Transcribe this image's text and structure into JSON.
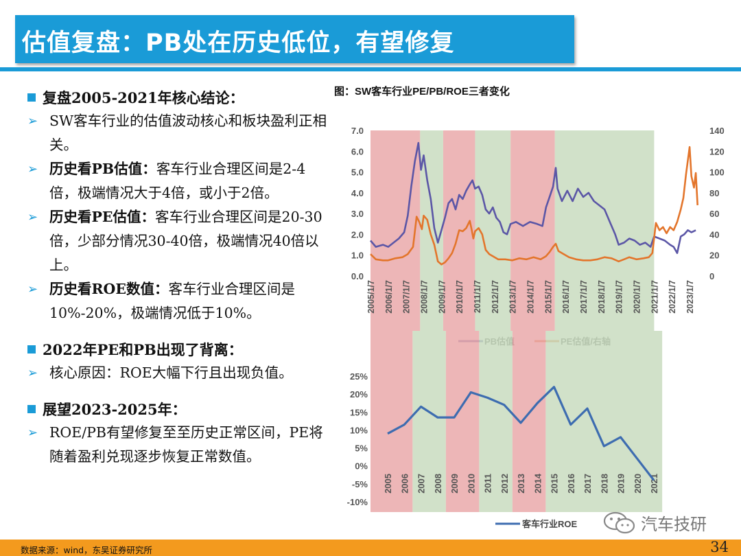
{
  "title": "估值复盘：PB处在历史低位，有望修复",
  "sections": [
    {
      "heading": "复盘2005-2021年核心结论：",
      "bullets": [
        {
          "bold": "",
          "text": "SW客车行业的估值波动核心和板块盈利正相关。"
        },
        {
          "bold": "历史看PB估值：",
          "text": "客车行业合理区间是2-4倍，极端情况大于4倍，或小于2倍。"
        },
        {
          "bold": "历史看PE估值：",
          "text": "客车行业合理区间是20-30倍，少部分情况30-40倍，极端情况40倍以上。"
        },
        {
          "bold": "历史看ROE数值：",
          "text": "客车行业合理区间是10%-20%，极端情况低于10%。"
        }
      ]
    },
    {
      "heading": "2022年PE和PB出现了背离：",
      "bullets": [
        {
          "bold": "",
          "text": "核心原因：ROE大幅下行且出现负值。"
        }
      ]
    },
    {
      "heading": "展望2023-2025年：",
      "bullets": [
        {
          "bold": "",
          "text": "ROE/PB有望修复至至历史正常区间，PE将随着盈利兑现逐步恢复正常数值。"
        }
      ]
    }
  ],
  "source": "数据来源：wind，东吴证券研究所",
  "page_number": "34",
  "watermark": "汽车技研",
  "colors": {
    "accent": "#1a9bd7",
    "pb": "#5b56a6",
    "pe": "#e3752b",
    "roe": "#3d6cb0",
    "shade_red": "#eaa9aa",
    "shade_green": "#c9dcc0",
    "footer": "#f39a1e"
  },
  "chart_data": [
    {
      "type": "line",
      "title": "图：SW客车行业PE/PB/ROE三者变化",
      "x_labels": [
        "2005/1/7",
        "2006/1/7",
        "2007/1/7",
        "2008/1/7",
        "2009/1/7",
        "2010/1/7",
        "2011/1/7",
        "2012/1/7",
        "2013/1/7",
        "2014/1/7",
        "2015/1/7",
        "2016/1/7",
        "2017/1/7",
        "2018/1/7",
        "2019/1/7",
        "2020/1/7",
        "2021/1/7",
        "2022/1/7",
        "2023/1/7"
      ],
      "x_range": [
        2005.0,
        2023.5
      ],
      "y_left": {
        "ticks": [
          "0.0",
          "1.0",
          "2.0",
          "3.0",
          "4.0",
          "5.0",
          "6.0",
          "7.0"
        ],
        "range": [
          0,
          7
        ]
      },
      "y_right": {
        "ticks": [
          "0",
          "20",
          "40",
          "60",
          "80",
          "100",
          "120",
          "140"
        ],
        "range": [
          0,
          140
        ]
      },
      "shaded_periods": [
        {
          "from": 2005.0,
          "to": 2007.8,
          "color": "red"
        },
        {
          "from": 2007.8,
          "to": 2009.1,
          "color": "green"
        },
        {
          "from": 2009.1,
          "to": 2010.9,
          "color": "red"
        },
        {
          "from": 2010.9,
          "to": 2012.9,
          "color": "green"
        },
        {
          "from": 2012.9,
          "to": 2015.4,
          "color": "red"
        },
        {
          "from": 2015.4,
          "to": 2021.0,
          "color": "green"
        }
      ],
      "series": [
        {
          "name": "PB估值",
          "axis": "left",
          "points": [
            [
              2005.0,
              1.7
            ],
            [
              2005.3,
              1.4
            ],
            [
              2005.7,
              1.5
            ],
            [
              2006.0,
              1.4
            ],
            [
              2006.3,
              1.6
            ],
            [
              2006.6,
              1.8
            ],
            [
              2006.9,
              2.1
            ],
            [
              2007.1,
              2.9
            ],
            [
              2007.3,
              4.3
            ],
            [
              2007.5,
              5.5
            ],
            [
              2007.7,
              6.4
            ],
            [
              2007.85,
              5.1
            ],
            [
              2008.0,
              5.8
            ],
            [
              2008.2,
              4.6
            ],
            [
              2008.4,
              3.7
            ],
            [
              2008.6,
              2.3
            ],
            [
              2008.8,
              1.6
            ],
            [
              2009.0,
              2.2
            ],
            [
              2009.2,
              2.8
            ],
            [
              2009.4,
              3.5
            ],
            [
              2009.6,
              3.7
            ],
            [
              2009.8,
              3.2
            ],
            [
              2010.0,
              3.9
            ],
            [
              2010.2,
              3.7
            ],
            [
              2010.4,
              4.1
            ],
            [
              2010.6,
              4.4
            ],
            [
              2010.75,
              4.6
            ],
            [
              2010.9,
              4.2
            ],
            [
              2011.1,
              4.3
            ],
            [
              2011.3,
              3.9
            ],
            [
              2011.5,
              3.2
            ],
            [
              2011.7,
              3.0
            ],
            [
              2011.9,
              3.3
            ],
            [
              2012.1,
              2.8
            ],
            [
              2012.3,
              2.6
            ],
            [
              2012.5,
              2.1
            ],
            [
              2012.7,
              2.0
            ],
            [
              2012.9,
              2.5
            ],
            [
              2013.2,
              2.6
            ],
            [
              2013.6,
              2.4
            ],
            [
              2014.0,
              2.6
            ],
            [
              2014.4,
              2.5
            ],
            [
              2014.7,
              2.4
            ],
            [
              2014.9,
              3.3
            ],
            [
              2015.1,
              3.8
            ],
            [
              2015.3,
              4.3
            ],
            [
              2015.45,
              5.2
            ],
            [
              2015.55,
              4.2
            ],
            [
              2015.8,
              3.6
            ],
            [
              2016.1,
              4.1
            ],
            [
              2016.4,
              3.6
            ],
            [
              2016.7,
              4.2
            ],
            [
              2017.0,
              3.8
            ],
            [
              2017.3,
              4.0
            ],
            [
              2017.6,
              3.6
            ],
            [
              2017.9,
              3.4
            ],
            [
              2018.2,
              3.2
            ],
            [
              2018.5,
              2.6
            ],
            [
              2018.8,
              2.0
            ],
            [
              2019.0,
              1.5
            ],
            [
              2019.3,
              1.6
            ],
            [
              2019.6,
              1.8
            ],
            [
              2019.9,
              1.7
            ],
            [
              2020.2,
              1.5
            ],
            [
              2020.5,
              1.6
            ],
            [
              2020.8,
              1.4
            ],
            [
              2021.0,
              1.9
            ],
            [
              2021.3,
              1.8
            ],
            [
              2021.6,
              1.7
            ],
            [
              2021.9,
              1.5
            ],
            [
              2022.1,
              1.4
            ],
            [
              2022.3,
              1.1
            ],
            [
              2022.5,
              1.9
            ],
            [
              2022.7,
              2.0
            ],
            [
              2022.9,
              2.2
            ],
            [
              2023.1,
              2.1
            ],
            [
              2023.35,
              2.2
            ]
          ]
        },
        {
          "name": "PE估值/右轴",
          "axis": "right",
          "points": [
            [
              2005.0,
              21
            ],
            [
              2005.3,
              16
            ],
            [
              2005.7,
              15
            ],
            [
              2006.0,
              15
            ],
            [
              2006.4,
              17
            ],
            [
              2006.8,
              18
            ],
            [
              2007.1,
              21
            ],
            [
              2007.4,
              28
            ],
            [
              2007.6,
              57
            ],
            [
              2007.75,
              52
            ],
            [
              2007.9,
              45
            ],
            [
              2008.0,
              58
            ],
            [
              2008.2,
              54
            ],
            [
              2008.4,
              40
            ],
            [
              2008.6,
              30
            ],
            [
              2008.8,
              14
            ],
            [
              2009.0,
              11
            ],
            [
              2009.2,
              13
            ],
            [
              2009.4,
              17
            ],
            [
              2009.6,
              22
            ],
            [
              2009.8,
              31
            ],
            [
              2010.0,
              44
            ],
            [
              2010.2,
              43
            ],
            [
              2010.4,
              46
            ],
            [
              2010.6,
              53
            ],
            [
              2010.7,
              45
            ],
            [
              2010.8,
              36
            ],
            [
              2010.9,
              43
            ],
            [
              2011.1,
              46
            ],
            [
              2011.3,
              40
            ],
            [
              2011.5,
              25
            ],
            [
              2011.7,
              21
            ],
            [
              2011.9,
              19
            ],
            [
              2012.2,
              16
            ],
            [
              2012.6,
              16
            ],
            [
              2013.0,
              15
            ],
            [
              2013.4,
              17
            ],
            [
              2013.8,
              16
            ],
            [
              2014.2,
              18
            ],
            [
              2014.6,
              16
            ],
            [
              2014.9,
              19
            ],
            [
              2015.1,
              23
            ],
            [
              2015.3,
              28
            ],
            [
              2015.45,
              31
            ],
            [
              2015.6,
              24
            ],
            [
              2015.9,
              21
            ],
            [
              2016.2,
              18
            ],
            [
              2016.6,
              16
            ],
            [
              2017.0,
              15
            ],
            [
              2017.4,
              15
            ],
            [
              2017.8,
              16
            ],
            [
              2018.2,
              18
            ],
            [
              2018.6,
              17
            ],
            [
              2019.0,
              14
            ],
            [
              2019.3,
              16
            ],
            [
              2019.6,
              18
            ],
            [
              2020.0,
              16
            ],
            [
              2020.4,
              17
            ],
            [
              2020.7,
              18
            ],
            [
              2020.9,
              22
            ],
            [
              2021.1,
              51
            ],
            [
              2021.3,
              44
            ],
            [
              2021.5,
              47
            ],
            [
              2021.7,
              41
            ],
            [
              2021.9,
              47
            ],
            [
              2022.1,
              44
            ],
            [
              2022.3,
              52
            ],
            [
              2022.5,
              64
            ],
            [
              2022.65,
              75
            ],
            [
              2022.8,
              98
            ],
            [
              2022.9,
              111
            ],
            [
              2023.0,
              124
            ],
            [
              2023.1,
              96
            ],
            [
              2023.25,
              85
            ],
            [
              2023.35,
              99
            ],
            [
              2023.45,
              68
            ]
          ]
        }
      ],
      "legend": [
        {
          "name": "PB估值"
        },
        {
          "name": "PE估值/右轴"
        }
      ]
    },
    {
      "type": "line",
      "categories": [
        "2005",
        "2006",
        "2007",
        "2008",
        "2009",
        "2010",
        "2011",
        "2012",
        "2013",
        "2014",
        "2015",
        "2016",
        "2017",
        "2018",
        "2019",
        "2020",
        "2021"
      ],
      "y_ticks": [
        "-10%",
        "-5%",
        "0%",
        "5%",
        "10%",
        "15%",
        "20%",
        "25%"
      ],
      "ylim": [
        -10,
        25
      ],
      "series": [
        {
          "name": "客车行业ROE",
          "values": [
            9,
            11.5,
            16.5,
            13.5,
            13.5,
            20.5,
            19,
            17,
            12,
            17.5,
            22,
            11.5,
            16,
            5.5,
            8,
            2,
            -4
          ]
        }
      ],
      "shaded_periods": [
        {
          "from": "2005",
          "to": "2007",
          "color": "red"
        },
        {
          "from": "2007",
          "to": "2009",
          "color": "green"
        },
        {
          "from": "2009",
          "to": "2011",
          "color": "red"
        },
        {
          "from": "2011",
          "to": "2013",
          "color": "green"
        },
        {
          "from": "2013",
          "to": "2015",
          "color": "red"
        },
        {
          "from": "2015",
          "to": "2021",
          "color": "green"
        }
      ],
      "legend": [
        {
          "name": "客车行业ROE"
        }
      ]
    }
  ]
}
